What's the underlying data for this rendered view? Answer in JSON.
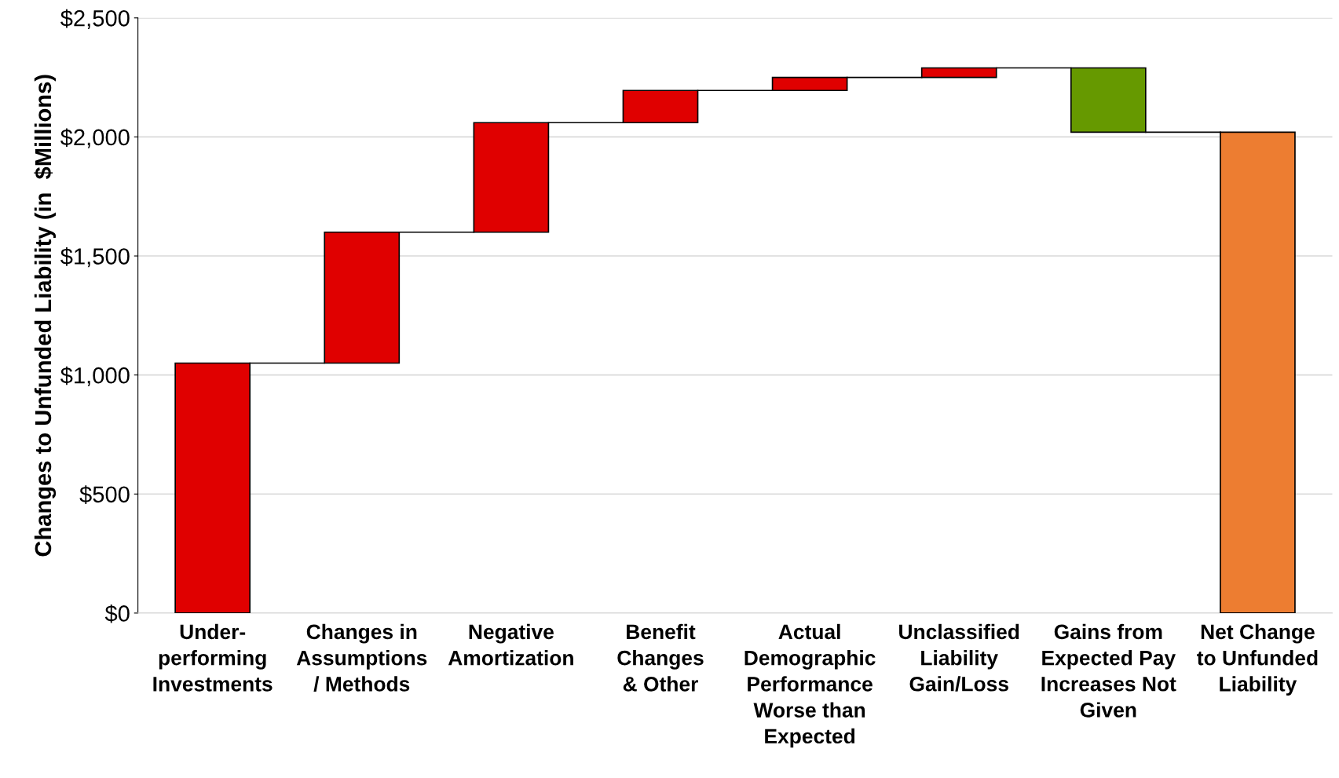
{
  "chart_data": {
    "type": "bar",
    "ylabel": "Changes to Unfunded Liability (in  $Millions)",
    "categories": [
      "Under-\nperforming\nInvestments",
      "Changes in\nAssumptions\n/ Methods",
      "Negative\nAmortization",
      "Benefit\nChanges\n& Other",
      "Actual\nDemographic\nPerformance\nWorse than\nExpected",
      "Unclassified\nLiability\nGain/Loss",
      "Gains from\nExpected Pay\nIncreases Not\nGiven",
      "Net Change\nto Unfunded\nLiability"
    ],
    "values": [
      1050,
      550,
      460,
      135,
      55,
      40,
      -270,
      2020
    ],
    "base": [
      0,
      1050,
      1600,
      2060,
      2195,
      2250,
      2290,
      0
    ],
    "colors": [
      "#e00000",
      "#e00000",
      "#e00000",
      "#e00000",
      "#e00000",
      "#e00000",
      "#669900",
      "#ed7d31"
    ],
    "ylim": [
      0,
      2500
    ],
    "yticks": [
      {
        "value": 0,
        "label": "$0"
      },
      {
        "value": 500,
        "label": "$500"
      },
      {
        "value": 1000,
        "label": "$1,000"
      },
      {
        "value": 1500,
        "label": "$1,500"
      },
      {
        "value": 2000,
        "label": "$2,000"
      },
      {
        "value": 2500,
        "label": "$2,500"
      }
    ],
    "grid": "y",
    "legend": false
  }
}
